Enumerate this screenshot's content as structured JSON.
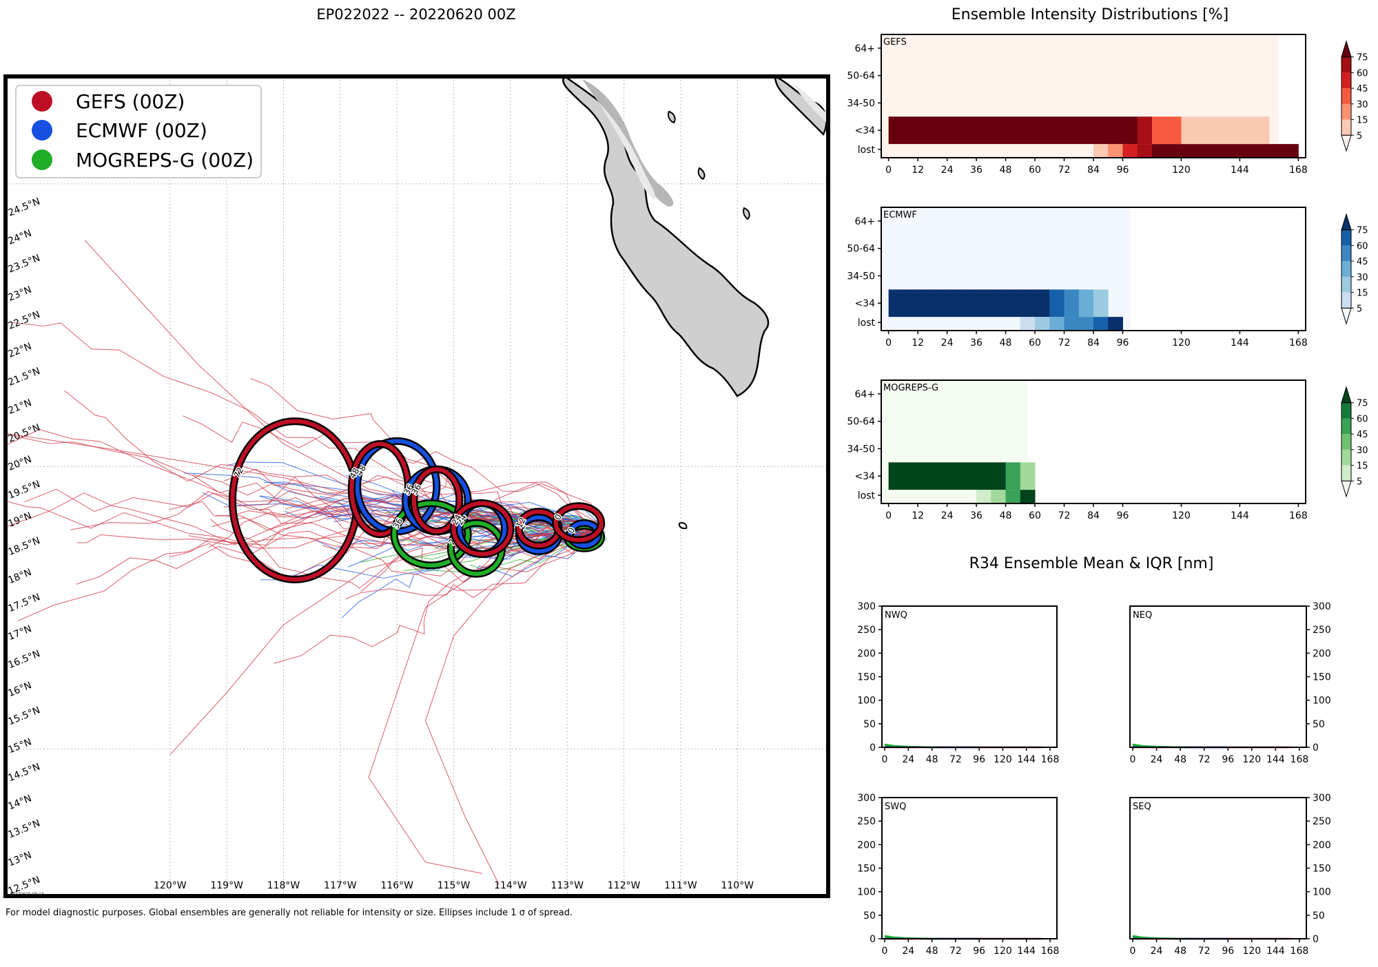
{
  "map": {
    "title": "EP022022 -- 20220620 00Z",
    "footnote": "For model diagnostic purposes. Global ensembles are generally not reliable for intensity or size. Ellipses include 1 σ of spread.",
    "stamp": "20220620 08:13",
    "legend": [
      {
        "label": "GEFS (00Z)",
        "color": "#be0f26"
      },
      {
        "label": "ECMWF (00Z)",
        "color": "#1550e0"
      },
      {
        "label": "MOGREPS-G (00Z)",
        "color": "#1fae26"
      }
    ],
    "lon_labels": [
      "120°W",
      "119°W",
      "118°W",
      "117°W",
      "116°W",
      "115°W",
      "114°W",
      "113°W",
      "112°W",
      "111°W",
      "110°W"
    ],
    "lat_labels": [
      "12.5°N",
      "13°N",
      "13.5°N",
      "14°N",
      "14.5°N",
      "15°N",
      "15.5°N",
      "16°N",
      "16.5°N",
      "17°N",
      "17.5°N",
      "18°N",
      "18.5°N",
      "19°N",
      "19.5°N",
      "20°N",
      "20.5°N",
      "21°N",
      "21.5°N",
      "22°N",
      "22.5°N",
      "23°N",
      "23.5°N",
      "24°N",
      "24.5°N"
    ]
  },
  "chart_data": [
    {
      "type": "map",
      "title": "EP022022 -- 20220620 00Z",
      "xlim": [
        -122.9,
        -108.4
      ],
      "ylim": [
        12.4,
        26.9
      ],
      "ellipses": [
        {
          "model": "GEFS",
          "hour": "0",
          "lon": -112.8,
          "lat": 19.0,
          "rx": 0.4,
          "ry": 0.3
        },
        {
          "model": "ECMWF",
          "hour": "0",
          "lon": -112.7,
          "lat": 18.8,
          "rx": 0.25,
          "ry": 0.2
        },
        {
          "model": "MOGREPS-G",
          "hour": "0",
          "lon": -112.7,
          "lat": 18.75,
          "rx": 0.3,
          "ry": 0.2
        },
        {
          "model": "GEFS",
          "hour": "12",
          "lon": -113.5,
          "lat": 18.9,
          "rx": 0.35,
          "ry": 0.3
        },
        {
          "model": "ECMWF",
          "hour": "12",
          "lon": -113.5,
          "lat": 18.8,
          "rx": 0.35,
          "ry": 0.3
        },
        {
          "model": "MOGREPS-G",
          "hour": "12",
          "lon": -113.5,
          "lat": 18.9,
          "rx": 0.35,
          "ry": 0.3
        },
        {
          "model": "GEFS",
          "hour": "24",
          "lon": -114.5,
          "lat": 18.9,
          "rx": 0.5,
          "ry": 0.45
        },
        {
          "model": "ECMWF",
          "hour": "24",
          "lon": -114.5,
          "lat": 18.9,
          "rx": 0.4,
          "ry": 0.45
        },
        {
          "model": "MOGREPS-G",
          "hour": "24",
          "lon": -114.6,
          "lat": 18.55,
          "rx": 0.45,
          "ry": 0.45
        },
        {
          "model": "GEFS",
          "hour": "36",
          "lon": -115.3,
          "lat": 19.4,
          "rx": 0.4,
          "ry": 0.55
        },
        {
          "model": "ECMWF",
          "hour": "36",
          "lon": -115.3,
          "lat": 19.4,
          "rx": 0.55,
          "ry": 0.55
        },
        {
          "model": "MOGREPS-G",
          "hour": "36",
          "lon": -115.4,
          "lat": 18.8,
          "rx": 0.65,
          "ry": 0.55
        },
        {
          "model": "GEFS",
          "hour": "48",
          "lon": -116.3,
          "lat": 19.6,
          "rx": 0.5,
          "ry": 0.8
        },
        {
          "model": "ECMWF",
          "hour": "48",
          "lon": -116.0,
          "lat": 19.65,
          "rx": 0.7,
          "ry": 0.8
        },
        {
          "model": "GEFS",
          "hour": "72",
          "lon": -117.8,
          "lat": 19.4,
          "rx": 1.1,
          "ry": 1.4
        }
      ]
    },
    {
      "type": "heatmap",
      "title": "Ensemble Intensity Distributions [%]",
      "panel": "GEFS",
      "x": [
        0,
        6,
        12,
        18,
        24,
        30,
        36,
        42,
        48,
        54,
        60,
        66,
        72,
        78,
        84,
        90,
        96,
        102,
        108,
        114,
        120,
        126,
        132,
        138,
        144,
        150,
        156,
        162,
        168
      ],
      "x_ticks": [
        0,
        12,
        24,
        36,
        48,
        60,
        72,
        84,
        96,
        120,
        144,
        168
      ],
      "y_categories": [
        "lost",
        "<34",
        "34-50",
        "50-64",
        "64+"
      ],
      "values": {
        "lost": [
          0,
          0,
          0,
          0,
          0,
          0,
          0,
          0,
          0,
          0,
          0,
          0,
          0,
          3,
          10,
          20,
          48,
          60,
          90,
          90,
          90,
          90,
          90,
          90,
          90,
          90,
          90,
          90
        ],
        "<34": [
          100,
          100,
          100,
          100,
          100,
          100,
          100,
          100,
          100,
          100,
          100,
          100,
          100,
          100,
          100,
          88,
          80,
          60,
          35,
          35,
          10,
          10,
          10,
          10,
          10,
          10,
          0,
          0
        ],
        "34-50": [
          0,
          0,
          0,
          0,
          0,
          0,
          0,
          0,
          0,
          0,
          0,
          0,
          0,
          0,
          0,
          0,
          0,
          0,
          0,
          0,
          0,
          0,
          0,
          0,
          0,
          0,
          0,
          0
        ],
        "50-64": [
          0,
          0,
          0,
          0,
          0,
          0,
          0,
          0,
          0,
          0,
          0,
          0,
          0,
          0,
          0,
          0,
          0,
          0,
          0,
          0,
          0,
          0,
          0,
          0,
          0,
          0,
          0,
          0
        ],
        "64+": [
          0,
          0,
          0,
          0,
          0,
          0,
          0,
          0,
          0,
          0,
          0,
          0,
          0,
          0,
          0,
          0,
          0,
          0,
          0,
          0,
          0,
          0,
          0,
          0,
          0,
          0,
          0,
          0
        ]
      },
      "valid_through_hour": 160,
      "colorbar": {
        "ticks": [
          5,
          15,
          30,
          45,
          60,
          75
        ],
        "colors": [
          "#fff3ee",
          "#fcc9b3",
          "#fc9370",
          "#f85a3f",
          "#d42020",
          "#a50f15",
          "#67000d"
        ]
      }
    },
    {
      "type": "heatmap",
      "panel": "ECMWF",
      "x": [
        0,
        6,
        12,
        18,
        24,
        30,
        36,
        42,
        48,
        54,
        60,
        66,
        72,
        78,
        84,
        90,
        96,
        102,
        108,
        114,
        120,
        126,
        132,
        138,
        144,
        150,
        156,
        162,
        168
      ],
      "x_ticks": [
        0,
        12,
        24,
        36,
        48,
        60,
        72,
        84,
        96,
        120,
        144,
        168
      ],
      "y_categories": [
        "lost",
        "<34",
        "34-50",
        "50-64",
        "64+"
      ],
      "values": {
        "lost": [
          0,
          0,
          0,
          0,
          0,
          0,
          0,
          0,
          3,
          10,
          20,
          35,
          50,
          50,
          65,
          90
        ],
        "<34": [
          100,
          100,
          100,
          100,
          100,
          100,
          100,
          100,
          100,
          100,
          80,
          65,
          50,
          35,
          20,
          0
        ],
        "34-50": [
          0,
          0,
          0,
          0,
          0,
          0,
          0,
          0,
          0,
          0,
          0,
          0,
          0,
          0,
          0,
          0
        ],
        "50-64": [
          0,
          0,
          0,
          0,
          0,
          0,
          0,
          0,
          0,
          0,
          0,
          0,
          0,
          0,
          0,
          0
        ],
        "64+": [
          0,
          0,
          0,
          0,
          0,
          0,
          0,
          0,
          0,
          0,
          0,
          0,
          0,
          0,
          0,
          0
        ]
      },
      "valid_through_hour": 99,
      "colorbar": {
        "ticks": [
          5,
          15,
          30,
          45,
          60,
          75
        ],
        "colors": [
          "#f3f8fe",
          "#cadef0",
          "#9ecae1",
          "#6aaed6",
          "#3a87c2",
          "#1561a9",
          "#08306b"
        ]
      }
    },
    {
      "type": "heatmap",
      "panel": "MOGREPS-G",
      "x": [
        0,
        6,
        12,
        18,
        24,
        30,
        36,
        42,
        48,
        54,
        60,
        66,
        72,
        78,
        84,
        90,
        96,
        102,
        108,
        114,
        120,
        126,
        132,
        138,
        144,
        150,
        156,
        162,
        168
      ],
      "x_ticks": [
        0,
        12,
        24,
        36,
        48,
        60,
        72,
        84,
        96,
        120,
        144,
        168
      ],
      "y_categories": [
        "lost",
        "<34",
        "34-50",
        "50-64",
        "64+"
      ],
      "values": {
        "lost": [
          0,
          0,
          0,
          0,
          0,
          0,
          10,
          20,
          55,
          80
        ],
        "<34": [
          100,
          100,
          100,
          100,
          100,
          100,
          100,
          100,
          55,
          25
        ],
        "34-50": [
          0,
          0,
          0,
          0,
          0,
          0,
          0,
          0,
          0,
          0
        ],
        "50-64": [
          0,
          0,
          0,
          0,
          0,
          0,
          0,
          0,
          0,
          0
        ],
        "64+": [
          0,
          0,
          0,
          0,
          0,
          0,
          0,
          0,
          0,
          0
        ]
      },
      "valid_through_hour": 57,
      "colorbar": {
        "ticks": [
          5,
          15,
          30,
          45,
          60,
          75
        ],
        "colors": [
          "#f4fbf1",
          "#d0edca",
          "#a1d99b",
          "#6fc172",
          "#3aa159",
          "#137a3a",
          "#00441b"
        ]
      }
    },
    {
      "type": "area",
      "title": "R34 Ensemble Mean & IQR [nm]",
      "panels": [
        {
          "name": "NWQ",
          "ylim": [
            0,
            300
          ],
          "xlim": [
            0,
            168
          ]
        },
        {
          "name": "NEQ",
          "ylim": [
            0,
            300
          ],
          "xlim": [
            0,
            168
          ]
        },
        {
          "name": "SWQ",
          "ylim": [
            0,
            300
          ],
          "xlim": [
            0,
            168
          ]
        },
        {
          "name": "SEQ",
          "ylim": [
            0,
            300
          ],
          "xlim": [
            0,
            168
          ]
        }
      ],
      "x_ticks": [
        0,
        24,
        48,
        72,
        96,
        120,
        144,
        168
      ],
      "y_ticks": [
        0,
        50,
        100,
        150,
        200,
        250,
        300
      ],
      "series": [
        {
          "name": "GEFS",
          "color": "#be0f26",
          "x": [
            0,
            24,
            48,
            72,
            96,
            120,
            144,
            160
          ],
          "values": [
            0,
            0,
            0,
            0,
            0,
            0,
            0,
            0
          ]
        },
        {
          "name": "ECMWF",
          "color": "#1550e0",
          "x": [
            0,
            24,
            48,
            72,
            96
          ],
          "values": [
            4,
            1,
            0,
            0,
            0
          ]
        },
        {
          "name": "MOGREPS-G",
          "color": "#1fae26",
          "x": [
            0,
            12,
            24,
            48,
            56
          ],
          "values": [
            6,
            2,
            1,
            0,
            0
          ]
        }
      ]
    }
  ]
}
